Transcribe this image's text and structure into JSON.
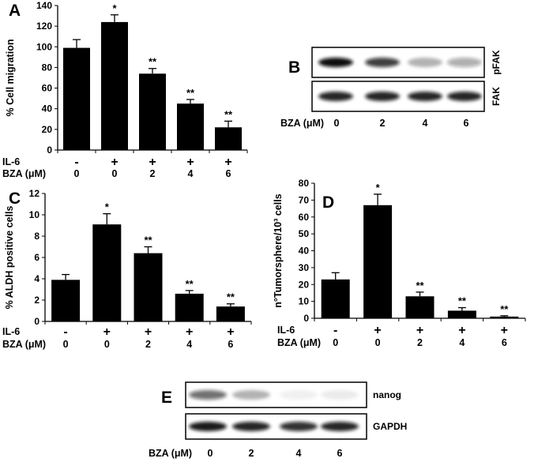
{
  "panels": [
    {
      "letter": "A"
    },
    {
      "letter": "B"
    },
    {
      "letter": "C"
    },
    {
      "letter": "D"
    },
    {
      "letter": "E"
    }
  ],
  "chart_data": [
    {
      "panel": "A",
      "type": "bar",
      "ylabel": "% Cell migration",
      "ylim": [
        0,
        140
      ],
      "yticks": [
        0,
        20,
        40,
        60,
        80,
        100,
        120,
        140
      ],
      "row_labels": [
        "IL-6",
        "BZA (μM)"
      ],
      "categories_il6": [
        "-",
        "+",
        "+",
        "+",
        "+"
      ],
      "categories_bza": [
        "0",
        "0",
        "2",
        "4",
        "6"
      ],
      "values": [
        99,
        124,
        74,
        45,
        22
      ],
      "errors": [
        8,
        7,
        5,
        4,
        6
      ],
      "annotations": [
        "",
        "*",
        "**",
        "**",
        "**"
      ]
    },
    {
      "panel": "C",
      "type": "bar",
      "ylabel": "% ALDH positive cells",
      "ylim": [
        0,
        12
      ],
      "yticks": [
        0,
        2,
        4,
        6,
        8,
        10,
        12
      ],
      "row_labels": [
        "IL-6",
        "BZA (μM)"
      ],
      "categories_il6": [
        "-",
        "+",
        "+",
        "+",
        "+"
      ],
      "categories_bza": [
        "0",
        "0",
        "2",
        "4",
        "6"
      ],
      "values": [
        3.9,
        9.1,
        6.4,
        2.6,
        1.4
      ],
      "errors": [
        0.5,
        1.0,
        0.6,
        0.3,
        0.25
      ],
      "annotations": [
        "",
        "*",
        "**",
        "**",
        "**"
      ]
    },
    {
      "panel": "D",
      "type": "bar",
      "ylabel": "n°Tumorsphere/10³ cells",
      "ylim": [
        0,
        80
      ],
      "yticks": [
        0,
        10,
        20,
        30,
        40,
        50,
        60,
        70,
        80
      ],
      "row_labels": [
        "IL-6",
        "BZA (μM)"
      ],
      "categories_il6": [
        "-",
        "+",
        "+",
        "+",
        "+"
      ],
      "categories_bza": [
        "0",
        "0",
        "2",
        "4",
        "6"
      ],
      "values": [
        23,
        67,
        13,
        4.5,
        1
      ],
      "errors": [
        4,
        6.5,
        2.5,
        1.8,
        0.5
      ],
      "annotations": [
        "",
        "*",
        "**",
        "**",
        "**"
      ]
    }
  ],
  "blot_B": {
    "rows": [
      "pFAK",
      "FAK"
    ],
    "axis_label": "BZA (μM)",
    "lanes": [
      "0",
      "2",
      "4",
      "6"
    ],
    "intensity": [
      [
        1.0,
        0.8,
        0.3,
        0.35
      ],
      [
        0.9,
        0.9,
        0.9,
        0.9
      ]
    ]
  },
  "blot_E": {
    "rows": [
      "nanog",
      "GAPDH"
    ],
    "axis_label": "BZA (μM)",
    "lanes": [
      "0",
      "2",
      "4",
      "6"
    ],
    "intensity": [
      [
        0.6,
        0.3,
        0.06,
        0.08
      ],
      [
        0.95,
        0.9,
        0.85,
        0.9
      ]
    ]
  }
}
